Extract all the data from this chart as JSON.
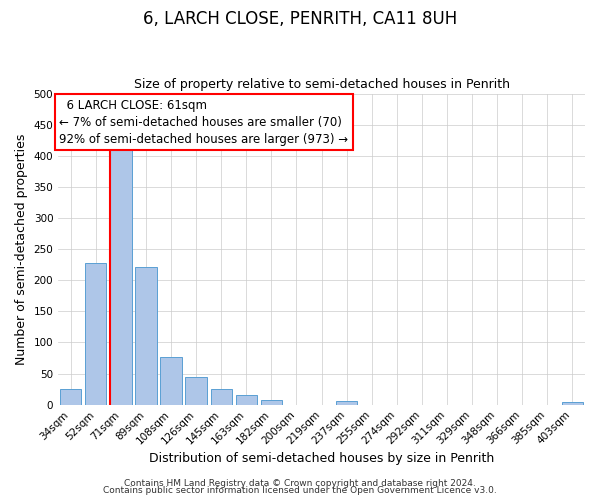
{
  "title": "6, LARCH CLOSE, PENRITH, CA11 8UH",
  "subtitle": "Size of property relative to semi-detached houses in Penrith",
  "xlabel": "Distribution of semi-detached houses by size in Penrith",
  "ylabel": "Number of semi-detached properties",
  "footer_line1": "Contains HM Land Registry data © Crown copyright and database right 2024.",
  "footer_line2": "Contains public sector information licensed under the Open Government Licence v3.0.",
  "bar_labels": [
    "34sqm",
    "52sqm",
    "71sqm",
    "89sqm",
    "108sqm",
    "126sqm",
    "145sqm",
    "163sqm",
    "182sqm",
    "200sqm",
    "219sqm",
    "237sqm",
    "255sqm",
    "274sqm",
    "292sqm",
    "311sqm",
    "329sqm",
    "348sqm",
    "366sqm",
    "385sqm",
    "403sqm"
  ],
  "bar_values": [
    25,
    228,
    410,
    222,
    77,
    44,
    25,
    16,
    8,
    0,
    0,
    6,
    0,
    0,
    0,
    0,
    0,
    0,
    0,
    0,
    5
  ],
  "bar_color": "#aec6e8",
  "bar_edgecolor": "#5a9fd4",
  "ylim": [
    0,
    500
  ],
  "yticks": [
    0,
    50,
    100,
    150,
    200,
    250,
    300,
    350,
    400,
    450,
    500
  ],
  "property_label": "6 LARCH CLOSE: 61sqm",
  "pct_smaller": 7,
  "pct_larger": 92,
  "n_smaller": 70,
  "n_larger": 973,
  "background_color": "#ffffff",
  "grid_color": "#cccccc",
  "title_fontsize": 12,
  "subtitle_fontsize": 9,
  "axis_label_fontsize": 9,
  "tick_fontsize": 7.5,
  "annotation_fontsize": 8.5,
  "footer_fontsize": 6.5
}
